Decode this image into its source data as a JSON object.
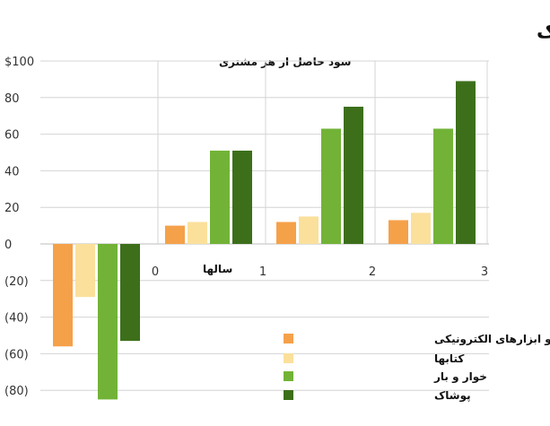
{
  "chart_data": {
    "type": "bar",
    "title": "شرایط اقتصادی چرخه حیات مشتری در تجارت الکترونیک",
    "ylabel": "سود حاصل از هر مشتری",
    "xlabel": "سالها",
    "categories": [
      "0",
      "1",
      "2",
      "3"
    ],
    "x_ticks": [
      "0",
      "1",
      "2",
      "3"
    ],
    "y_ticks": [
      "$100",
      "80",
      "60",
      "40",
      "20",
      "0",
      "(20)",
      "(40)",
      "(60)",
      "(80)"
    ],
    "ylim": [
      -85,
      100
    ],
    "grid": true,
    "legend_position": "bottom-right",
    "series": [
      {
        "name": "لوازم و ابزارهای الکترونیکی",
        "color": "#f5a14a",
        "values": [
          -56,
          10,
          12,
          13
        ]
      },
      {
        "name": "کتابها",
        "color": "#fbe09c",
        "values": [
          -29,
          12,
          15,
          17
        ]
      },
      {
        "name": "خوار و بار",
        "color": "#72b337",
        "values": [
          -85,
          51,
          63,
          63
        ]
      },
      {
        "name": "پوشاک",
        "color": "#3d6f1b",
        "values": [
          -53,
          51,
          75,
          89
        ]
      }
    ]
  }
}
